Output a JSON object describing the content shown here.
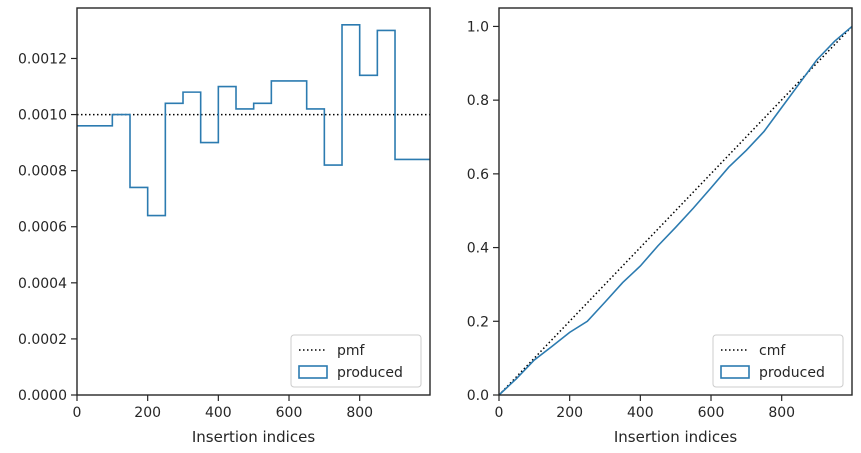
{
  "chart_data": [
    {
      "type": "step",
      "xlabel": "Insertion indices",
      "ylabel": "",
      "xlim": [
        0,
        999
      ],
      "ylim": [
        0,
        0.00138
      ],
      "xticks": [
        0,
        200,
        400,
        600,
        800
      ],
      "yticks": [
        0.0,
        0.0002,
        0.0004,
        0.0006,
        0.0008,
        0.001,
        0.0012
      ],
      "ytick_labels": [
        "0.0000",
        "0.0002",
        "0.0004",
        "0.0006",
        "0.0008",
        "0.0010",
        "0.0012"
      ],
      "grid": false,
      "legend_position": "lower-right",
      "series": [
        {
          "name": "pmf",
          "style": "dotted",
          "color": "#000000",
          "x": [
            0,
            999
          ],
          "y": [
            0.001,
            0.001
          ]
        },
        {
          "name": "produced",
          "style": "step-histogram",
          "color": "#2c7bb0",
          "bin_edges": [
            0,
            100,
            150,
            200,
            250,
            300,
            350,
            400,
            450,
            500,
            550,
            650,
            700,
            750,
            800,
            850,
            900,
            999
          ],
          "values": [
            0.00096,
            0.001,
            0.00074,
            0.00064,
            0.00104,
            0.00108,
            0.0009,
            0.0011,
            0.00102,
            0.00104,
            0.00112,
            0.00102,
            0.00082,
            0.00132,
            0.00114,
            0.0013,
            0.00084
          ]
        }
      ]
    },
    {
      "type": "line",
      "xlabel": "Insertion indices",
      "ylabel": "",
      "xlim": [
        0,
        999
      ],
      "ylim": [
        0,
        1.05
      ],
      "xticks": [
        0,
        200,
        400,
        600,
        800
      ],
      "yticks": [
        0.0,
        0.2,
        0.4,
        0.6,
        0.8,
        1.0
      ],
      "ytick_labels": [
        "0.0",
        "0.2",
        "0.4",
        "0.6",
        "0.8",
        "1.0"
      ],
      "grid": false,
      "legend_position": "lower-right",
      "series": [
        {
          "name": "cmf",
          "style": "dotted",
          "color": "#000000",
          "x": [
            0,
            999
          ],
          "y": [
            0.0,
            1.0
          ]
        },
        {
          "name": "produced",
          "style": "solid",
          "color": "#2c7bb0",
          "x": [
            0,
            50,
            100,
            150,
            200,
            250,
            300,
            350,
            400,
            450,
            500,
            550,
            600,
            650,
            700,
            750,
            800,
            850,
            900,
            950,
            999
          ],
          "y": [
            0.0,
            0.045,
            0.095,
            0.132,
            0.17,
            0.2,
            0.252,
            0.305,
            0.35,
            0.405,
            0.455,
            0.507,
            0.562,
            0.618,
            0.664,
            0.715,
            0.78,
            0.845,
            0.91,
            0.96,
            1.0
          ]
        }
      ]
    }
  ]
}
